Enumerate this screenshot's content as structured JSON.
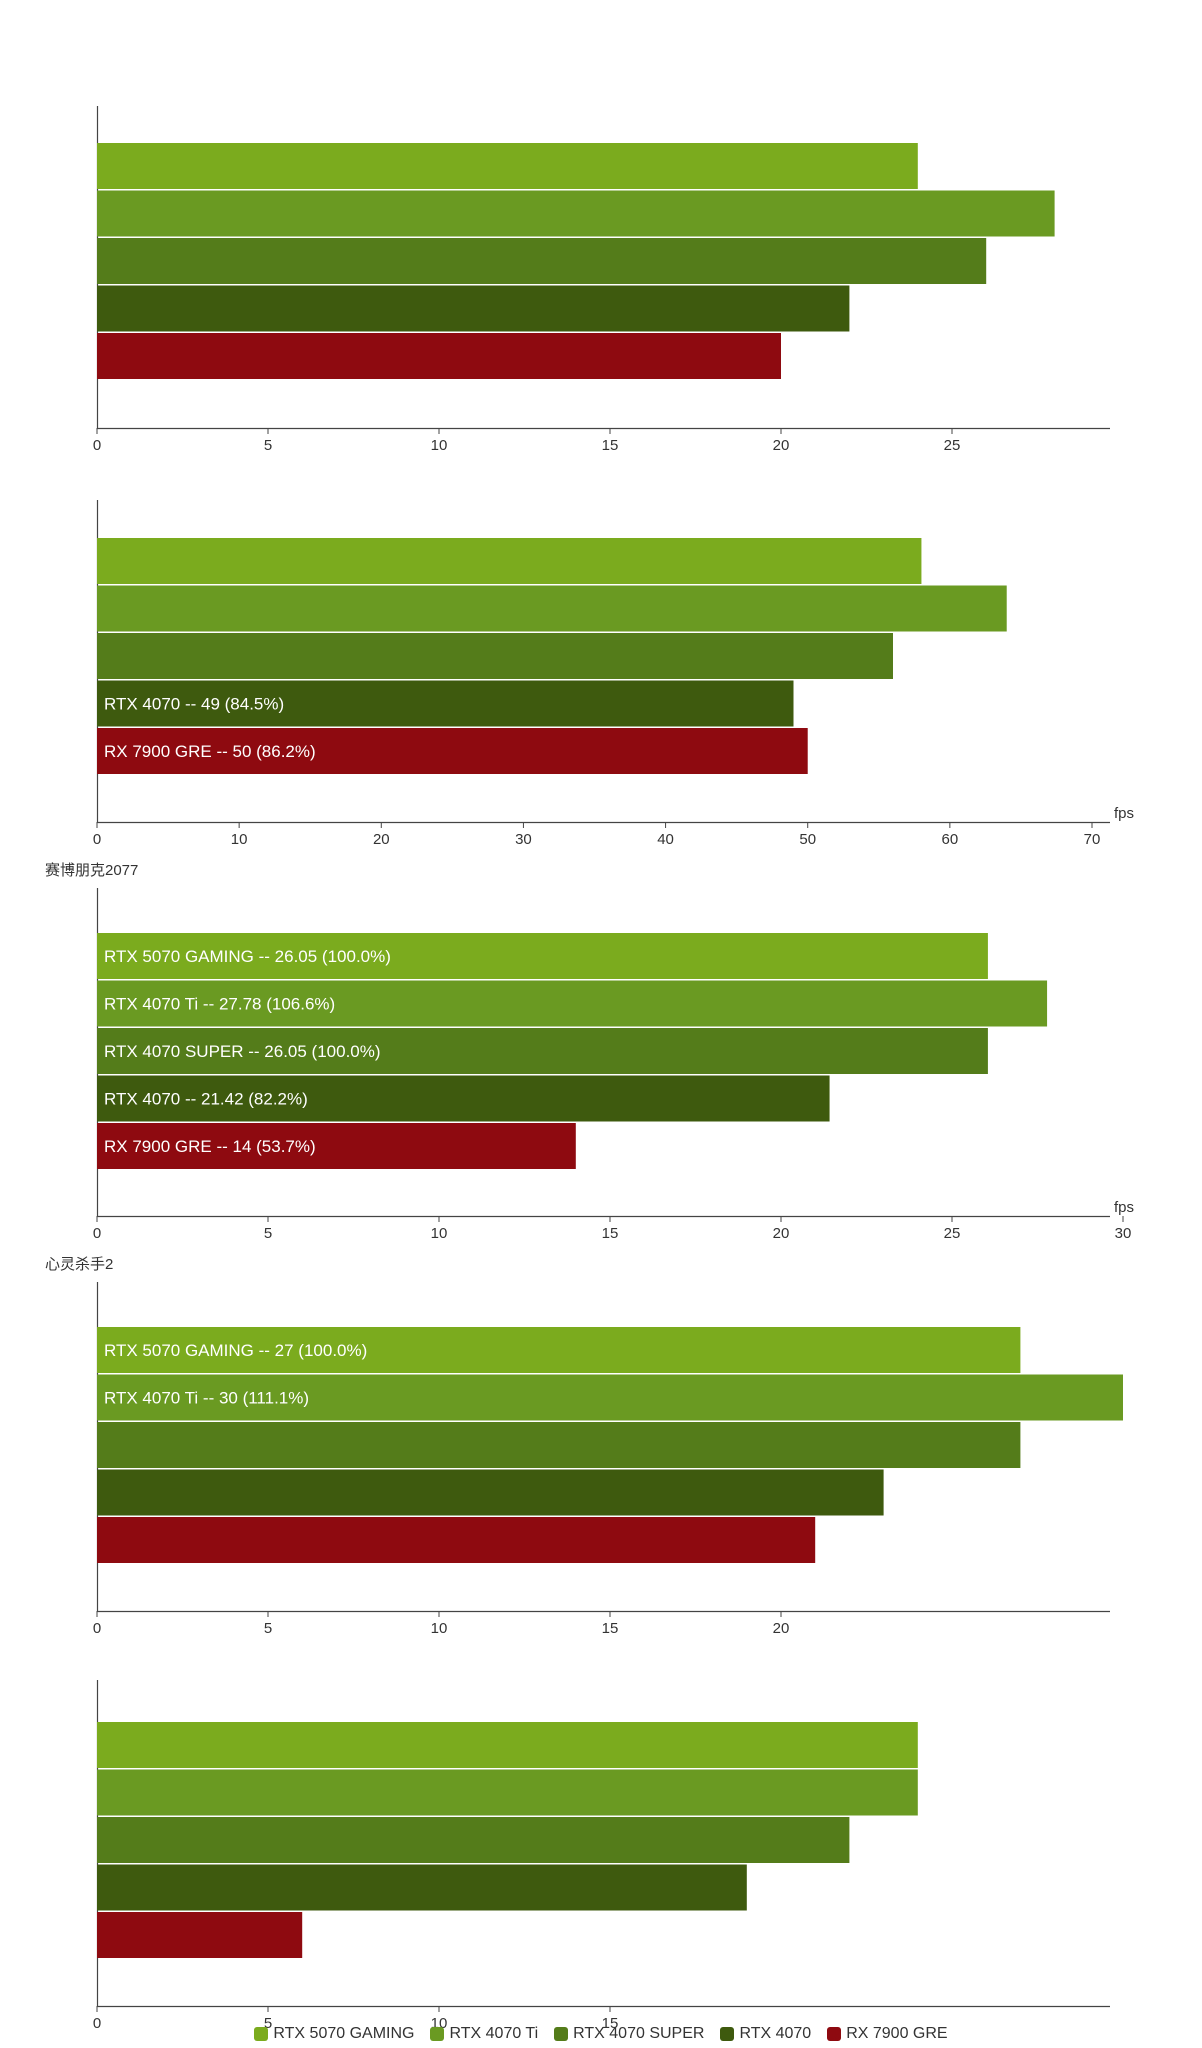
{
  "colors": [
    "#7bab1e",
    "#6a9a22",
    "#547c1a",
    "#3e5a0e",
    "#8e0a10"
  ],
  "legend": [
    "RTX 5070 GAMING",
    "RTX 4070 Ti",
    "RTX 4070 SUPER",
    "RTX 4070",
    "RX 7900 GRE"
  ],
  "chart_data": [
    {
      "type": "bar",
      "orientation": "horizontal",
      "title": "",
      "xlim": [
        0,
        30
      ],
      "ticks": [
        "0",
        "5",
        "10",
        "15",
        "20",
        "25"
      ],
      "unit": "",
      "series": [
        {
          "name": "RTX 5070 GAMING",
          "value": 24,
          "label": ""
        },
        {
          "name": "RTX 4070 Ti",
          "value": 28,
          "label": ""
        },
        {
          "name": "RTX 4070 SUPER",
          "value": 26,
          "label": ""
        },
        {
          "name": "RTX 4070",
          "value": 22,
          "label": ""
        },
        {
          "name": "RX 7900 GRE",
          "value": 20,
          "label": ""
        }
      ]
    },
    {
      "type": "bar",
      "orientation": "horizontal",
      "title": "",
      "xlim": [
        0,
        70
      ],
      "ticks": [
        "0",
        "10",
        "20",
        "30",
        "40",
        "50",
        "60",
        "70"
      ],
      "unit": "fps",
      "series": [
        {
          "name": "RTX 5070 GAMING",
          "value": 58,
          "label": ""
        },
        {
          "name": "RTX 4070 Ti",
          "value": 64,
          "label": ""
        },
        {
          "name": "RTX 4070 SUPER",
          "value": 56,
          "label": ""
        },
        {
          "name": "RTX 4070",
          "value": 49,
          "label": "RTX 4070 -- 49 (84.5%)"
        },
        {
          "name": "RX 7900 GRE",
          "value": 50,
          "label": "RX 7900 GRE -- 50 (86.2%)"
        }
      ]
    },
    {
      "type": "bar",
      "orientation": "horizontal",
      "title": "赛博朋克2077",
      "xlim": [
        0,
        30
      ],
      "ticks": [
        "0",
        "5",
        "10",
        "15",
        "20",
        "25",
        "30"
      ],
      "unit": "fps",
      "series": [
        {
          "name": "RTX 5070 GAMING",
          "value": 26.05,
          "label": "RTX 5070 GAMING -- 26.05 (100.0%)"
        },
        {
          "name": "RTX 4070 Ti",
          "value": 27.78,
          "label": "RTX 4070 Ti -- 27.78 (106.6%)"
        },
        {
          "name": "RTX 4070 SUPER",
          "value": 26.05,
          "label": "RTX 4070 SUPER -- 26.05 (100.0%)"
        },
        {
          "name": "RTX 4070",
          "value": 21.42,
          "label": "RTX 4070 -- 21.42 (82.2%)"
        },
        {
          "name": "RX 7900 GRE",
          "value": 14,
          "label": "RX 7900 GRE -- 14 (53.7%)"
        }
      ]
    },
    {
      "type": "bar",
      "orientation": "horizontal",
      "title": "心灵杀手2",
      "xlim": [
        0,
        30
      ],
      "ticks": [
        "0",
        "5",
        "10",
        "15",
        "20"
      ],
      "unit": "",
      "series": [
        {
          "name": "RTX 5070 GAMING",
          "value": 27,
          "label": "RTX 5070 GAMING -- 27 (100.0%)"
        },
        {
          "name": "RTX 4070 Ti",
          "value": 30,
          "label": "RTX 4070 Ti -- 30 (111.1%)"
        },
        {
          "name": "RTX 4070 SUPER",
          "value": 27,
          "label": ""
        },
        {
          "name": "RTX 4070",
          "value": 23,
          "label": ""
        },
        {
          "name": "RX 7900 GRE",
          "value": 21,
          "label": ""
        }
      ]
    },
    {
      "type": "bar",
      "orientation": "horizontal",
      "title": "",
      "xlim": [
        0,
        25
      ],
      "ticks": [
        "0",
        "5",
        "10",
        "15"
      ],
      "unit": "",
      "series": [
        {
          "name": "RTX 5070 GAMING",
          "value": 24,
          "label": ""
        },
        {
          "name": "RTX 4070 Ti",
          "value": 24,
          "label": ""
        },
        {
          "name": "RTX 4070 SUPER",
          "value": 22,
          "label": ""
        },
        {
          "name": "RTX 4070",
          "value": 19,
          "label": ""
        },
        {
          "name": "RX 7900 GRE",
          "value": 6,
          "label": ""
        }
      ]
    }
  ]
}
